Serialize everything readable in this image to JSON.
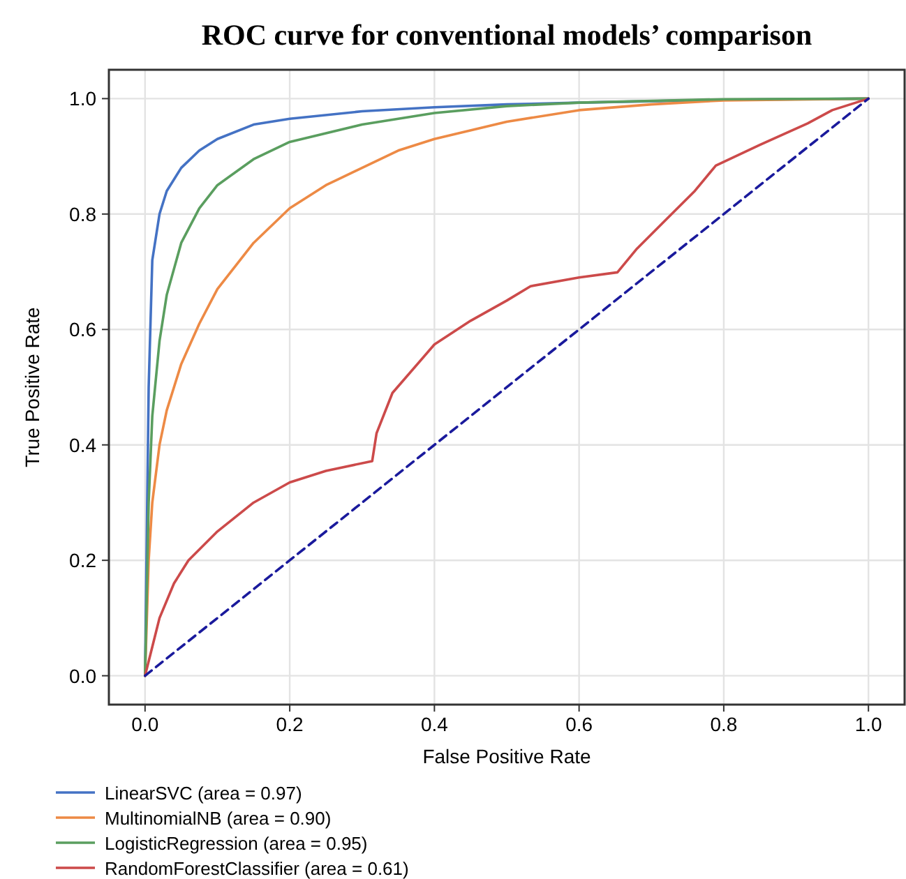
{
  "chart_data": {
    "type": "line",
    "title": "ROC curve for conventional models’ comparison",
    "xlabel": "False Positive Rate",
    "ylabel": "True Positive Rate",
    "xlim": [
      -0.05,
      1.05
    ],
    "ylim": [
      -0.05,
      1.05
    ],
    "xticks": [
      {
        "value": 0,
        "label": "0.0"
      },
      0.2,
      0.4,
      0.6,
      0.8,
      {
        "value": 1,
        "label": "1.0"
      }
    ],
    "yticks": [
      {
        "value": 0,
        "label": "0.0"
      },
      0.2,
      0.4,
      0.6,
      0.8,
      {
        "value": 1,
        "label": "1.0"
      }
    ],
    "grid": true,
    "legend": "bottom",
    "series": [
      {
        "name": "LinearSVC (area = 0.97)",
        "color": "#4472c4",
        "x": [
          0,
          0.005,
          0.01,
          0.02,
          0.03,
          0.05,
          0.075,
          0.1,
          0.15,
          0.2,
          0.3,
          0.4,
          0.5,
          0.6,
          0.8,
          1
        ],
        "values": [
          0,
          0.5,
          0.72,
          0.8,
          0.84,
          0.88,
          0.91,
          0.93,
          0.955,
          0.965,
          0.978,
          0.985,
          0.99,
          0.993,
          0.998,
          1
        ]
      },
      {
        "name": "MultinomialNB (area = 0.90)",
        "color": "#ed8a45",
        "x": [
          0,
          0.005,
          0.01,
          0.02,
          0.03,
          0.05,
          0.075,
          0.1,
          0.15,
          0.2,
          0.25,
          0.3,
          0.35,
          0.4,
          0.5,
          0.6,
          0.7,
          0.8,
          1
        ],
        "values": [
          0,
          0.2,
          0.3,
          0.4,
          0.46,
          0.54,
          0.61,
          0.67,
          0.75,
          0.81,
          0.85,
          0.88,
          0.91,
          0.93,
          0.96,
          0.98,
          0.99,
          0.997,
          1
        ]
      },
      {
        "name": "LogisticRegression (area = 0.95)",
        "color": "#5a9e5f",
        "x": [
          0,
          0.005,
          0.01,
          0.02,
          0.03,
          0.05,
          0.075,
          0.1,
          0.15,
          0.2,
          0.3,
          0.4,
          0.5,
          0.6,
          0.8,
          1
        ],
        "values": [
          0,
          0.3,
          0.45,
          0.58,
          0.66,
          0.75,
          0.81,
          0.85,
          0.895,
          0.925,
          0.955,
          0.975,
          0.987,
          0.993,
          0.999,
          1
        ]
      },
      {
        "name": "RandomForestClassifier (area = 0.61)",
        "color": "#cc4a4a",
        "x": [
          0,
          0.01,
          0.02,
          0.04,
          0.06,
          0.1,
          0.15,
          0.2,
          0.25,
          0.314,
          0.32,
          0.342,
          0.4,
          0.45,
          0.5,
          0.533,
          0.6,
          0.653,
          0.68,
          0.72,
          0.76,
          0.789,
          0.85,
          0.916,
          0.95,
          1
        ],
        "values": [
          0,
          0.05,
          0.1,
          0.16,
          0.2,
          0.25,
          0.3,
          0.335,
          0.355,
          0.372,
          0.42,
          0.49,
          0.574,
          0.615,
          0.65,
          0.675,
          0.69,
          0.699,
          0.74,
          0.79,
          0.84,
          0.884,
          0.92,
          0.957,
          0.98,
          1
        ]
      },
      {
        "color": "#1a1a9c",
        "line_style": "dashed",
        "x": [
          0,
          1
        ],
        "values": [
          0,
          1
        ]
      }
    ]
  }
}
